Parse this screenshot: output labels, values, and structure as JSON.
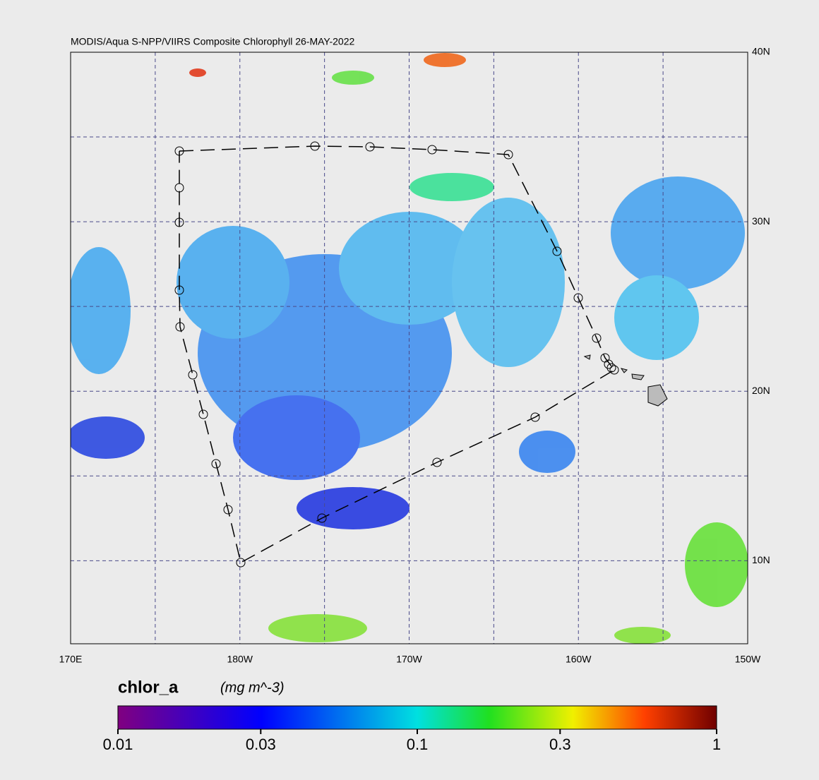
{
  "title": "MODIS/Aqua S-NPP/VIIRS Composite Chlorophyll 26-MAY-2022",
  "map": {
    "xlim": [
      170,
      210
    ],
    "ylim": [
      5.1,
      40
    ],
    "xticks": [
      {
        "value": 170,
        "label": "170E"
      },
      {
        "value": 180,
        "label": "180W"
      },
      {
        "value": 190,
        "label": "170W"
      },
      {
        "value": 200,
        "label": "160W"
      },
      {
        "value": 210,
        "label": "150W"
      }
    ],
    "yticks": [
      {
        "value": 40,
        "label": "40N"
      },
      {
        "value": 30,
        "label": "30N"
      },
      {
        "value": 20,
        "label": "20N"
      },
      {
        "value": 10,
        "label": "10N"
      }
    ],
    "grid": true
  },
  "colorbar": {
    "label": "chlor_a",
    "units": "(mg m^-3)",
    "range": [
      0.01,
      1
    ],
    "log": true,
    "ticks": [
      0.01,
      0.03,
      0.1,
      0.3,
      1
    ]
  }
}
